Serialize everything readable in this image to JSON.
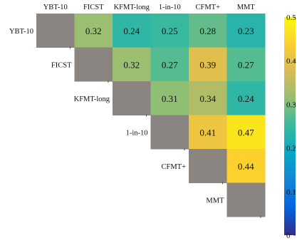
{
  "chart_data": {
    "type": "heatmap",
    "labels": [
      "YBT-10",
      "FICST",
      "KFMT-long",
      "1-in-10",
      "CFMT+",
      "MMT"
    ],
    "matrix": [
      [
        null,
        0.32,
        0.24,
        0.25,
        0.28,
        0.23
      ],
      [
        null,
        null,
        0.32,
        0.27,
        0.39,
        0.27
      ],
      [
        null,
        null,
        null,
        0.31,
        0.34,
        0.24
      ],
      [
        null,
        null,
        null,
        null,
        0.41,
        0.47
      ],
      [
        null,
        null,
        null,
        null,
        null,
        0.44
      ],
      [
        null,
        null,
        null,
        null,
        null,
        null
      ]
    ],
    "value_labels": [
      [
        null,
        "0.32",
        "0.24",
        "0.25",
        "0.28",
        "0.23"
      ],
      [
        null,
        null,
        "0.32",
        "0.27",
        "0.39",
        "0.27"
      ],
      [
        null,
        null,
        null,
        "0.31",
        "0.34",
        "0.24"
      ],
      [
        null,
        null,
        null,
        null,
        "0.41",
        "0.47"
      ],
      [
        null,
        null,
        null,
        null,
        null,
        "0.44"
      ],
      [
        null,
        null,
        null,
        null,
        null,
        null
      ]
    ],
    "diagonal_color": "#8a8580",
    "colorbar": {
      "range": [
        0,
        0.5
      ],
      "ticks": [
        0,
        0.1,
        0.2,
        0.3,
        0.4,
        0.5
      ],
      "tick_labels": [
        "0",
        "0.1",
        "0.2",
        "0.3",
        "0.4",
        "0.5"
      ],
      "colormap": "parula",
      "stops": [
        "#352a87",
        "#0363e1",
        "#1485d4",
        "#06a7c6",
        "#38b99e",
        "#92bf73",
        "#d9ba56",
        "#fcce2e",
        "#f9fb0e"
      ]
    }
  }
}
